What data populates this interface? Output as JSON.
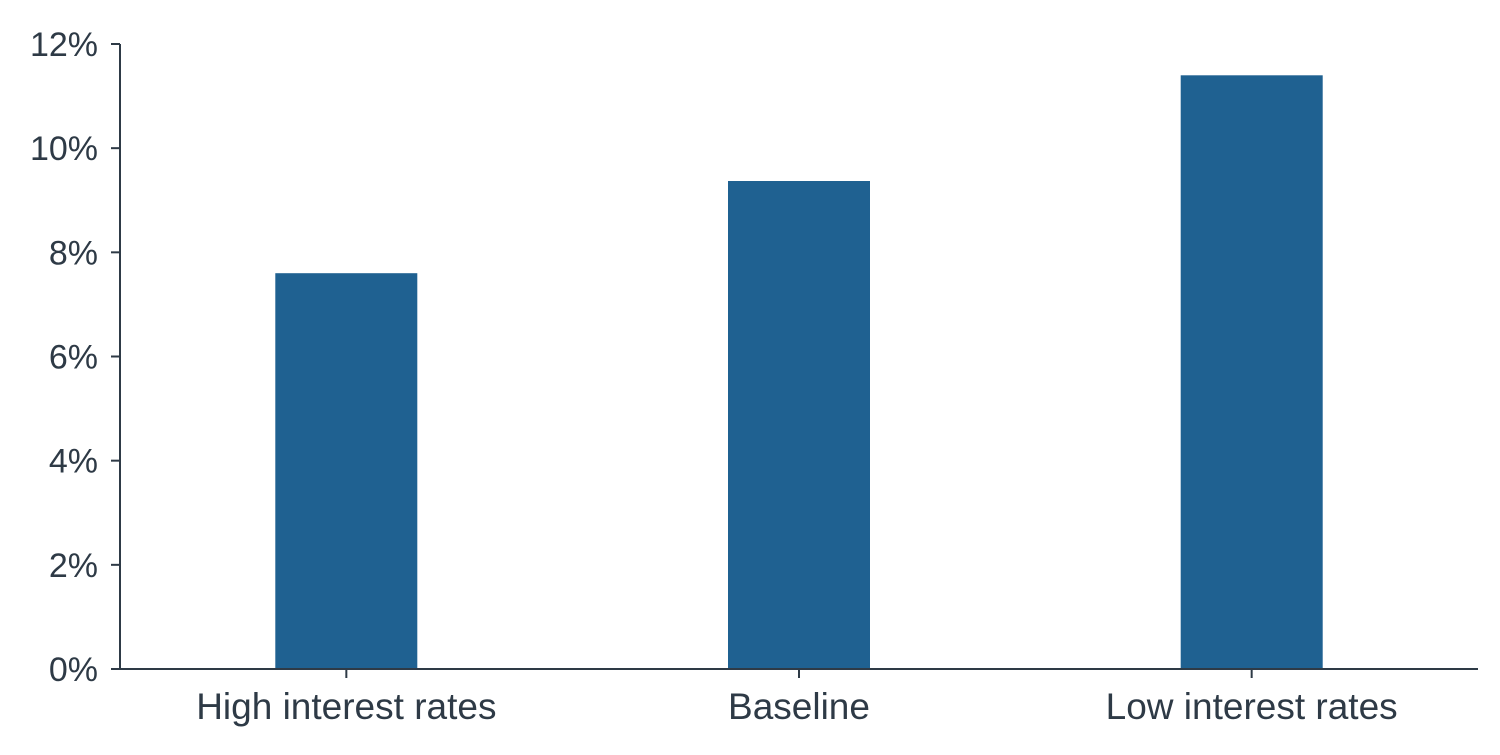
{
  "chart_data": {
    "type": "bar",
    "title": "",
    "xlabel": "",
    "ylabel": "",
    "categories": [
      "High interest rates",
      "Baseline",
      "Low interest rates"
    ],
    "values": [
      7.6,
      9.37,
      11.4
    ],
    "ylim": [
      0,
      12
    ],
    "yticks": [
      0,
      2,
      4,
      6,
      8,
      10,
      12
    ],
    "ytick_labels": [
      "0%",
      "2%",
      "4%",
      "6%",
      "8%",
      "10%",
      "12%"
    ],
    "grid": false,
    "legend": "none",
    "colors": {
      "bar": "#1f6191",
      "axis": "#2e3a46",
      "text": "#2e3a46"
    }
  }
}
